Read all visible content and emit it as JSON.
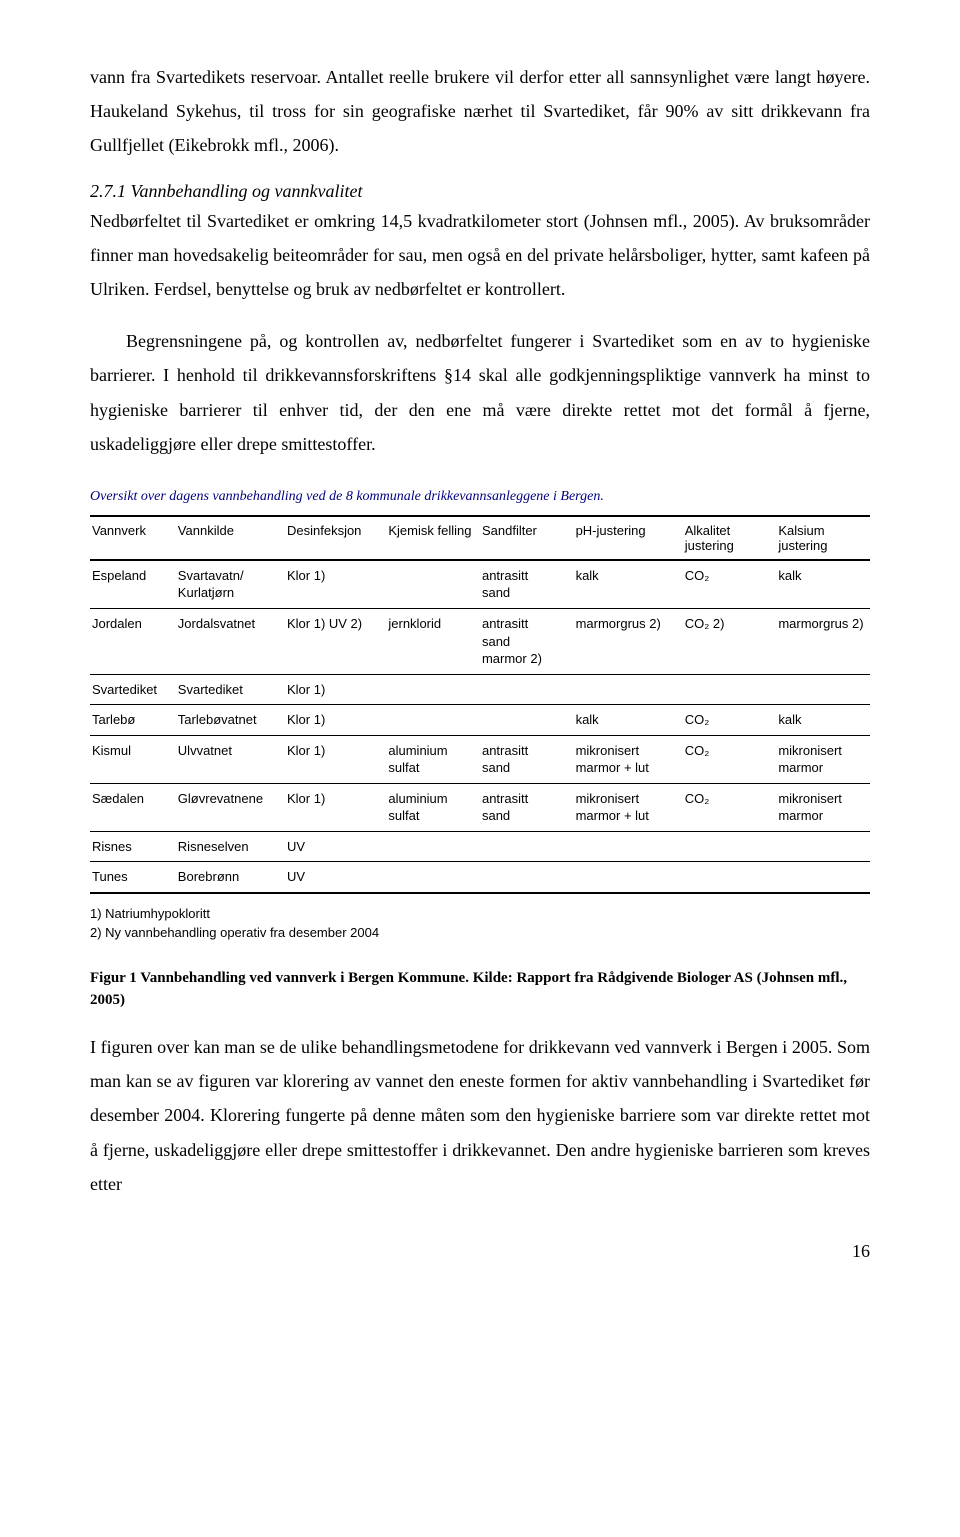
{
  "paragraphs": {
    "p1": "vann fra Svartedikets reservoar. Antallet reelle brukere vil derfor etter all sannsynlighet være langt høyere. Haukeland Sykehus, til tross for sin geografiske nærhet til Svartediket, får 90% av sitt drikkevann fra Gullfjellet (Eikebrokk mfl., 2006).",
    "subheading": "2.7.1 Vannbehandling og vannkvalitet",
    "p2_lead": "Nedbørfeltet til Svartediket er omkring 14,5 kvadratkilometer stort (Johnsen mfl., 2005). Av bruksområder finner man hovedsakelig beiteområder for sau, men også en del private helårsboliger, hytter, samt kafeen på Ulriken. Ferdsel, benyttelse og bruk av nedbørfeltet er kontrollert.",
    "p3": "Begrensningene på, og kontrollen av, nedbørfeltet fungerer i Svartediket som en av to hygieniske barrierer. I henhold til drikkevannsforskriftens §14 skal alle godkjenningspliktige vannverk ha minst to hygieniske barrierer til enhver tid, der den ene må være direkte rettet mot det formål å fjerne, uskadeliggjøre eller drepe smittestoffer.",
    "p4": "I figuren over kan man se de ulike behandlingsmetodene for drikkevann ved vannverk i Bergen i 2005. Som man kan se av figuren var klorering av vannet den eneste formen for aktiv vannbehandling i Svartediket før desember 2004. Klorering fungerte på denne måten som den hygieniske barriere som var direkte rettet mot å fjerne, uskadeliggjøre eller drepe smittestoffer i drikkevannet. Den andre hygieniske barrieren som kreves etter"
  },
  "table": {
    "caption": "Oversikt over dagens vannbehandling ved de 8 kommunale drikkevannsanleggene i Bergen.",
    "columns": [
      "Vannverk",
      "Vannkilde",
      "Desinfeksjon",
      "Kjemisk felling",
      "Sandfilter",
      "pH-justering",
      "Alkalitet justering",
      "Kalsium justering"
    ],
    "col_widths": [
      "11%",
      "14%",
      "13%",
      "12%",
      "12%",
      "14%",
      "12%",
      "12%"
    ],
    "rows": [
      [
        "Espeland",
        "Svartavatn/\nKurlatjørn",
        "Klor 1)",
        "",
        "antrasitt\nsand",
        "kalk",
        "CO₂",
        "kalk"
      ],
      [
        "Jordalen",
        "Jordalsvatnet",
        "Klor 1) UV 2)",
        "jernklorid",
        "antrasitt\nsand\nmarmor 2)",
        "marmorgrus 2)",
        "CO₂ 2)",
        "marmorgrus 2)"
      ],
      [
        "Svartediket",
        "Svartediket",
        "Klor 1)",
        "",
        "",
        "",
        "",
        ""
      ],
      [
        "Tarlebø",
        "Tarlebøvatnet",
        "Klor 1)",
        "",
        "",
        "kalk",
        "CO₂",
        "kalk"
      ],
      [
        "Kismul",
        "Ulvvatnet",
        "Klor 1)",
        "aluminium\nsulfat",
        "antrasitt\nsand",
        "mikronisert\nmarmor + lut",
        "CO₂",
        "mikronisert\nmarmor"
      ],
      [
        "Sædalen",
        "Gløvrevatnene",
        "Klor 1)",
        "aluminium\nsulfat",
        "antrasitt\nsand",
        "mikronisert\nmarmor + lut",
        "CO₂",
        "mikronisert\nmarmor"
      ],
      [
        "Risnes",
        "Risneselven",
        "UV",
        "",
        "",
        "",
        "",
        ""
      ],
      [
        "Tunes",
        "Borebrønn",
        "UV",
        "",
        "",
        "",
        "",
        ""
      ]
    ],
    "footnotes": [
      "1) Natriumhypokloritt",
      "2) Ny vannbehandling operativ fra desember 2004"
    ],
    "header_bg": "#ffffff",
    "border_color": "#000000",
    "caption_color": "#000080",
    "font_size_pt": 10
  },
  "figure_caption": "Figur 1 Vannbehandling ved vannverk i Bergen Kommune. Kilde: Rapport fra Rådgivende Biologer AS (Johnsen mfl., 2005)",
  "page_number": "16",
  "colors": {
    "text": "#000000",
    "background": "#ffffff",
    "caption_navy": "#000080"
  },
  "typography": {
    "body_font": "Times New Roman",
    "body_size_pt": 12,
    "table_font": "Arial",
    "table_size_pt": 10,
    "line_height": 1.9
  }
}
